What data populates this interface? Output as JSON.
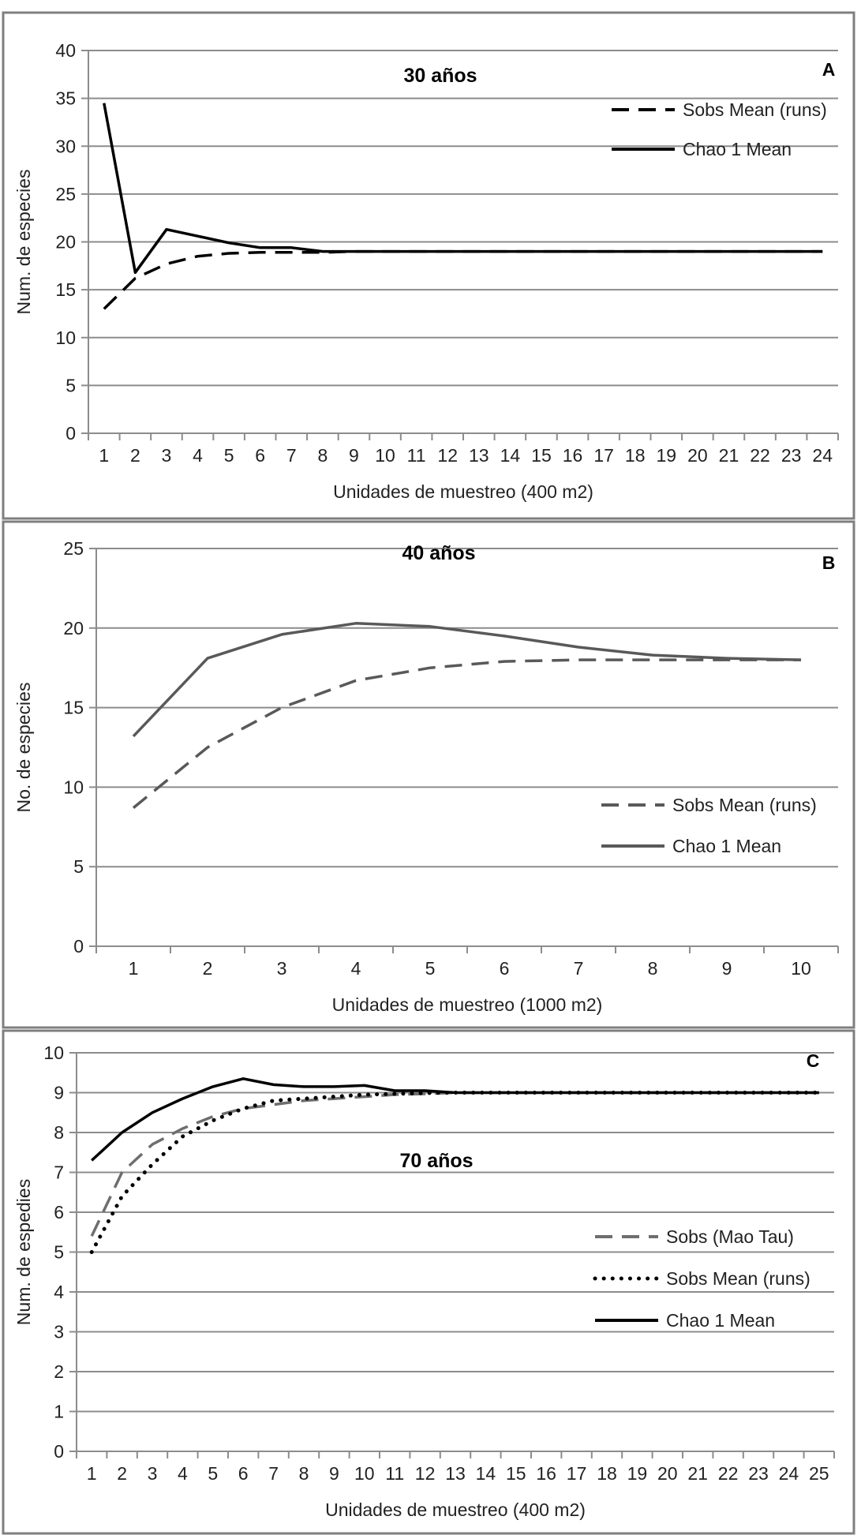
{
  "chart_data": [
    {
      "type": "line",
      "panel_letter": "A",
      "title": "30 años",
      "xlabel": "Unidades de muestreo (400 m2)",
      "ylabel": "Num. de especies",
      "ylim": [
        0,
        40
      ],
      "yticks": [
        0,
        5,
        10,
        15,
        20,
        25,
        30,
        35,
        40
      ],
      "categories": [
        "1",
        "2",
        "3",
        "4",
        "5",
        "6",
        "7",
        "8",
        "9",
        "10",
        "11",
        "12",
        "13",
        "14",
        "15",
        "16",
        "17",
        "18",
        "19",
        "20",
        "21",
        "22",
        "23",
        "24"
      ],
      "grid": true,
      "legend_position": "top-right",
      "series": [
        {
          "name": "Sobs Mean (runs)",
          "color": "#000000",
          "style": "dashed",
          "values": [
            13,
            16.2,
            17.7,
            18.5,
            18.8,
            18.9,
            18.9,
            18.9,
            19,
            19,
            19,
            19,
            19,
            19,
            19,
            19,
            19,
            19,
            19,
            19,
            19,
            19,
            19,
            19
          ]
        },
        {
          "name": "Chao 1 Mean",
          "color": "#000000",
          "style": "solid",
          "values": [
            34.5,
            16.8,
            21.3,
            20.6,
            19.9,
            19.4,
            19.4,
            19.0,
            19,
            19,
            19,
            19,
            19,
            19,
            19,
            19,
            19,
            19,
            19,
            19,
            19,
            19,
            19,
            19
          ]
        }
      ]
    },
    {
      "type": "line",
      "panel_letter": "B",
      "title": "40 años",
      "xlabel": "Unidades de muestreo (1000 m2)",
      "ylabel": "No. de especies",
      "ylim": [
        0,
        25
      ],
      "yticks": [
        0,
        5,
        10,
        15,
        20,
        25
      ],
      "categories": [
        "1",
        "2",
        "3",
        "4",
        "5",
        "6",
        "7",
        "8",
        "9",
        "10"
      ],
      "grid": true,
      "legend_position": "middle-right",
      "series": [
        {
          "name": "Sobs Mean (runs)",
          "color": "#595959",
          "style": "dashed",
          "values": [
            8.7,
            12.5,
            15.0,
            16.7,
            17.5,
            17.9,
            18.0,
            18.0,
            18.0,
            18.0
          ]
        },
        {
          "name": "Chao 1 Mean",
          "color": "#595959",
          "style": "solid",
          "values": [
            13.2,
            18.1,
            19.6,
            20.3,
            20.1,
            19.5,
            18.8,
            18.3,
            18.1,
            18.0
          ]
        }
      ]
    },
    {
      "type": "line",
      "panel_letter": "C",
      "title": "70 años",
      "xlabel": "Unidades de muestreo (400 m2)",
      "ylabel": "Num. de espedies",
      "ylim": [
        0,
        10
      ],
      "yticks": [
        0,
        1,
        2,
        3,
        4,
        5,
        6,
        7,
        8,
        9,
        10
      ],
      "categories": [
        "1",
        "2",
        "3",
        "4",
        "5",
        "6",
        "7",
        "8",
        "9",
        "10",
        "11",
        "12",
        "13",
        "14",
        "15",
        "16",
        "17",
        "18",
        "19",
        "20",
        "21",
        "22",
        "23",
        "24",
        "25"
      ],
      "grid": true,
      "legend_position": "middle-right",
      "series": [
        {
          "name": "Sobs (Mao Tau)",
          "color": "#6e6e6e",
          "style": "dashed",
          "values": [
            5.4,
            7.0,
            7.7,
            8.1,
            8.4,
            8.6,
            8.7,
            8.8,
            8.85,
            8.9,
            8.95,
            8.97,
            9,
            9,
            9,
            9,
            9,
            9,
            9,
            9,
            9,
            9,
            9,
            9,
            9
          ]
        },
        {
          "name": "Sobs Mean (runs)",
          "color": "#000000",
          "style": "dotted",
          "values": [
            5.0,
            6.4,
            7.2,
            7.9,
            8.3,
            8.6,
            8.8,
            8.85,
            8.9,
            8.95,
            8.97,
            8.99,
            9,
            9,
            9,
            9,
            9,
            9,
            9,
            9,
            9,
            9,
            9,
            9,
            9
          ]
        },
        {
          "name": "Chao 1 Mean",
          "color": "#000000",
          "style": "solid",
          "values": [
            7.3,
            8.0,
            8.5,
            8.85,
            9.15,
            9.35,
            9.2,
            9.15,
            9.15,
            9.18,
            9.05,
            9.05,
            9.0,
            9,
            9,
            9,
            9,
            9,
            9,
            9,
            9,
            9,
            9,
            9,
            9
          ]
        }
      ]
    }
  ]
}
